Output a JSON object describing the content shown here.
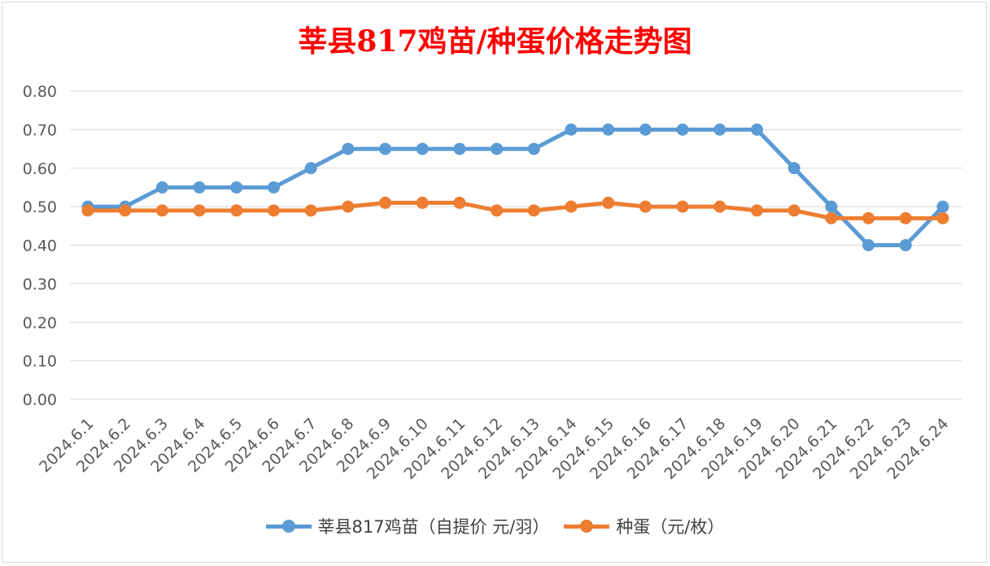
{
  "chart_data": {
    "type": "line",
    "title": "莘县817鸡苗/种蛋价格走势图",
    "xlabel": "",
    "ylabel": "",
    "categories": [
      "2024.6.1",
      "2024.6.2",
      "2024.6.3",
      "2024.6.4",
      "2024.6.5",
      "2024.6.6",
      "2024.6.7",
      "2024.6.8",
      "2024.6.9",
      "2024.6.10",
      "2024.6.11",
      "2024.6.12",
      "2024.6.13",
      "2024.6.14",
      "2024.6.15",
      "2024.6.16",
      "2024.6.17",
      "2024.6.18",
      "2024.6.19",
      "2024.6.20",
      "2024.6.21",
      "2024.6.22",
      "2024.6.23",
      "2024.6.24"
    ],
    "series": [
      {
        "name": "莘县817鸡苗（自提价 元/羽）",
        "color": "#5b9bd5",
        "values": [
          0.5,
          0.5,
          0.55,
          0.55,
          0.55,
          0.55,
          0.6,
          0.65,
          0.65,
          0.65,
          0.65,
          0.65,
          0.65,
          0.7,
          0.7,
          0.7,
          0.7,
          0.7,
          0.7,
          0.6,
          0.5,
          0.4,
          0.4,
          0.5
        ]
      },
      {
        "name": "种蛋（元/枚）",
        "color": "#ed7d31",
        "values": [
          0.49,
          0.49,
          0.49,
          0.49,
          0.49,
          0.49,
          0.49,
          0.5,
          0.51,
          0.51,
          0.51,
          0.49,
          0.49,
          0.5,
          0.51,
          0.5,
          0.5,
          0.5,
          0.49,
          0.49,
          0.47,
          0.47,
          0.47,
          0.47
        ]
      }
    ],
    "ylim": [
      0,
      0.8
    ],
    "yticks": [
      "0.00",
      "0.10",
      "0.20",
      "0.30",
      "0.40",
      "0.50",
      "0.60",
      "0.70",
      "0.80"
    ],
    "grid": true,
    "legend": "bottom"
  }
}
